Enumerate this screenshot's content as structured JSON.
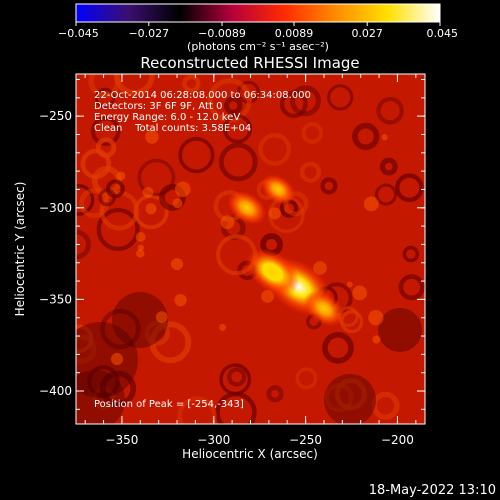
{
  "chart_data": {
    "type": "heatmap",
    "title": "Reconstructed RHESSI Image",
    "xlabel": "Heliocentric X (arcsec)",
    "ylabel": "Heliocentric Y (arcsec)",
    "xlim": [
      -375,
      -185
    ],
    "ylim": [
      -418,
      -227
    ],
    "x_ticks": [
      -350,
      -300,
      -250,
      -200
    ],
    "x_tick_labels": [
      "−350",
      "−300",
      "−250",
      "−200"
    ],
    "y_ticks": [
      -250,
      -300,
      -350,
      -400
    ],
    "y_tick_labels": [
      "−250",
      "−300",
      "−350",
      "−400"
    ],
    "colorbar": {
      "range": [
        -0.045,
        0.045
      ],
      "ticks": [
        -0.045,
        -0.027,
        -0.0089,
        0.0089,
        0.027,
        0.045
      ],
      "tick_labels": [
        "−0.045",
        "−0.027",
        "−0.0089",
        "0.0089",
        "0.027",
        "0.045"
      ],
      "units": "(photons cm⁻² s⁻¹ asec⁻²)",
      "colors": [
        "#0000ff",
        "#3b0f70",
        "#000000",
        "#b5003a",
        "#ff2a00",
        "#ff8c00",
        "#ffe000",
        "#ffffff"
      ]
    },
    "annotations": [
      "22-Oct-2014 06:28:08.000 to 06:34:08.000",
      "Detectors: 3F 6F 9F, Att 0",
      "Energy Range: 6.0 - 12.0 keV",
      "Clean    Total counts: 3.58E+04"
    ],
    "peak_label": "Position of Peak = [-254,-343]",
    "peak": [
      -254,
      -343
    ],
    "sources": [
      {
        "x": -254,
        "y": -343,
        "amp": 0.045
      },
      {
        "x": -268,
        "y": -335,
        "amp": 0.032
      },
      {
        "x": -282,
        "y": -300,
        "amp": 0.018
      },
      {
        "x": -265,
        "y": -290,
        "amp": 0.014
      },
      {
        "x": -240,
        "y": -355,
        "amp": 0.02
      }
    ],
    "background_level": 0.015
  },
  "footer": {
    "timestamp": "18-May-2022 13:10"
  }
}
